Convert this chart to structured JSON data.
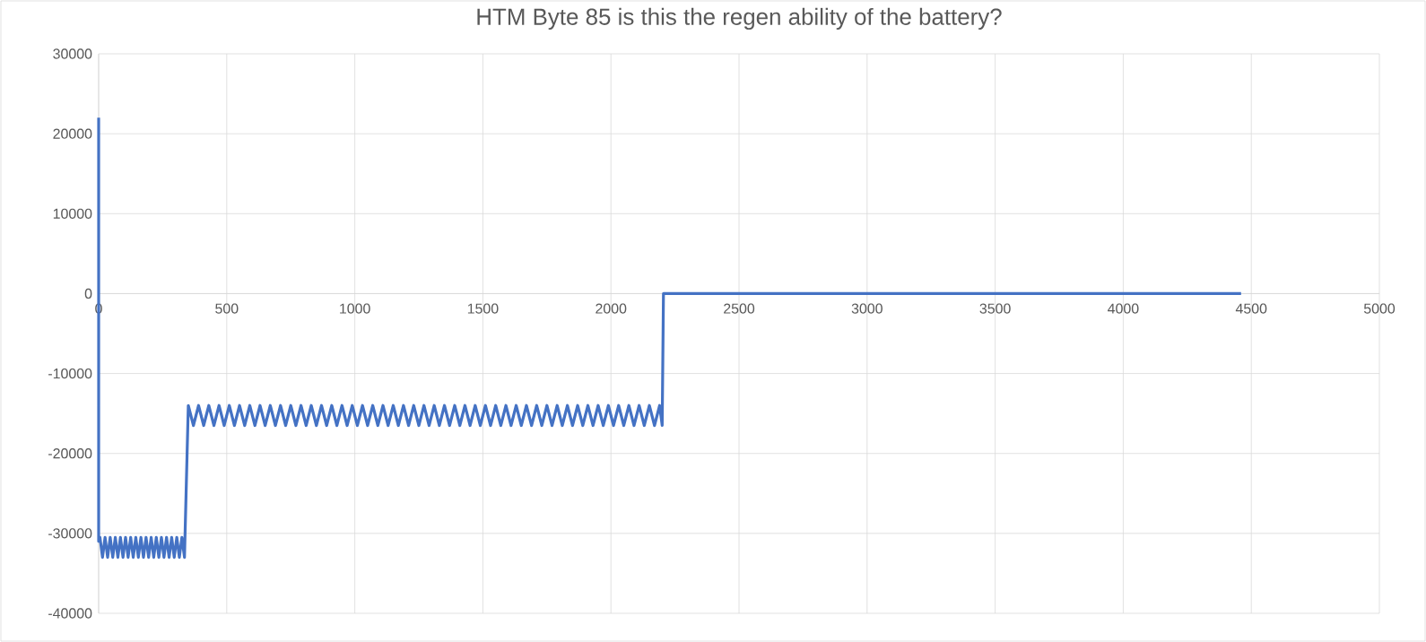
{
  "chart_data": {
    "type": "line",
    "title": "HTM Byte 85 is this the regen ability of the battery?",
    "xlim": [
      0,
      5000
    ],
    "xticks": [
      0,
      500,
      1000,
      1500,
      2000,
      2500,
      3000,
      3500,
      4000,
      4500,
      5000
    ],
    "ylim": [
      -40000,
      30000
    ],
    "yticks": [
      -40000,
      -30000,
      -20000,
      -10000,
      0,
      10000,
      20000,
      30000
    ],
    "grid": true,
    "marker": "none",
    "line_style": "solid",
    "series": [
      {
        "color": "#4472c4",
        "x": [
          0,
          0,
          5,
          15,
          25,
          35,
          45,
          55,
          65,
          75,
          85,
          95,
          105,
          115,
          125,
          135,
          145,
          155,
          165,
          175,
          185,
          195,
          205,
          215,
          225,
          235,
          245,
          255,
          265,
          275,
          285,
          295,
          305,
          315,
          325,
          335,
          350,
          370,
          390,
          410,
          430,
          450,
          470,
          490,
          510,
          530,
          550,
          570,
          590,
          610,
          630,
          650,
          670,
          690,
          710,
          730,
          750,
          770,
          790,
          810,
          830,
          850,
          870,
          890,
          910,
          930,
          950,
          970,
          990,
          1010,
          1030,
          1050,
          1070,
          1090,
          1110,
          1130,
          1150,
          1170,
          1190,
          1210,
          1230,
          1250,
          1270,
          1290,
          1310,
          1330,
          1350,
          1370,
          1390,
          1410,
          1430,
          1450,
          1470,
          1490,
          1510,
          1530,
          1550,
          1570,
          1590,
          1610,
          1630,
          1650,
          1670,
          1690,
          1710,
          1730,
          1750,
          1770,
          1790,
          1810,
          1830,
          1850,
          1870,
          1890,
          1910,
          1930,
          1950,
          1970,
          1990,
          2010,
          2030,
          2050,
          2070,
          2090,
          2110,
          2130,
          2150,
          2170,
          2190,
          2200,
          2205,
          4460
        ],
        "values": [
          22000,
          -31000,
          -30500,
          -33000,
          -30500,
          -33000,
          -30500,
          -33000,
          -30500,
          -33000,
          -30500,
          -33000,
          -30500,
          -33000,
          -30500,
          -33000,
          -30500,
          -33000,
          -30500,
          -33000,
          -30500,
          -33000,
          -30500,
          -33000,
          -30500,
          -33000,
          -30500,
          -33000,
          -30500,
          -33000,
          -30500,
          -33000,
          -30500,
          -33000,
          -30500,
          -33000,
          -14000,
          -16500,
          -14000,
          -16500,
          -14000,
          -16500,
          -14000,
          -16500,
          -14000,
          -16500,
          -14000,
          -16500,
          -14000,
          -16500,
          -14000,
          -16500,
          -14000,
          -16500,
          -14000,
          -16500,
          -14000,
          -16500,
          -14000,
          -16500,
          -14000,
          -16500,
          -14000,
          -16500,
          -14000,
          -16500,
          -14000,
          -16500,
          -14000,
          -16500,
          -14000,
          -16500,
          -14000,
          -16500,
          -14000,
          -16500,
          -14000,
          -16500,
          -14000,
          -16500,
          -14000,
          -16500,
          -14000,
          -16500,
          -14000,
          -16500,
          -14000,
          -16500,
          -14000,
          -16500,
          -14000,
          -16500,
          -14000,
          -16500,
          -14000,
          -16500,
          -14000,
          -16500,
          -14000,
          -16500,
          -14000,
          -16500,
          -14000,
          -16500,
          -14000,
          -16500,
          -14000,
          -16500,
          -14000,
          -16500,
          -14000,
          -16500,
          -14000,
          -16500,
          -14000,
          -16500,
          -14000,
          -16500,
          -14000,
          -16500,
          -14000,
          -16500,
          -14000,
          -16500,
          -14000,
          -16500,
          -14000,
          -16500,
          -14000,
          -16500,
          0,
          0
        ]
      }
    ]
  }
}
